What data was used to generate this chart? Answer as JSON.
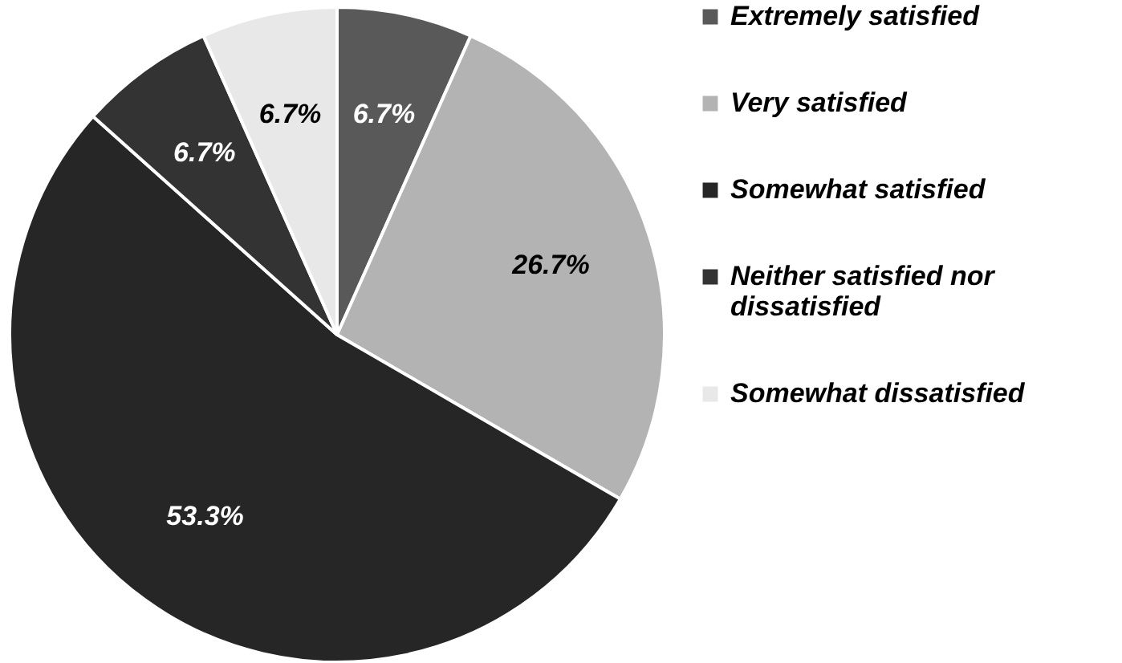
{
  "chart_data": {
    "type": "pie",
    "categories": [
      "Extremely satisfied",
      "Very satisfied",
      "Somewhat satisfied",
      "Neither satisfied nor dissatisfied",
      "Somewhat dissatisfied"
    ],
    "values": [
      6.7,
      26.7,
      53.3,
      6.7,
      6.7
    ],
    "colors": [
      "#595959",
      "#b3b3b3",
      "#262626",
      "#333333",
      "#e8e8e8"
    ],
    "value_labels": [
      "6.7%",
      "26.7%",
      "53.3%",
      "6.7%",
      "6.7%"
    ],
    "legend": "right"
  }
}
